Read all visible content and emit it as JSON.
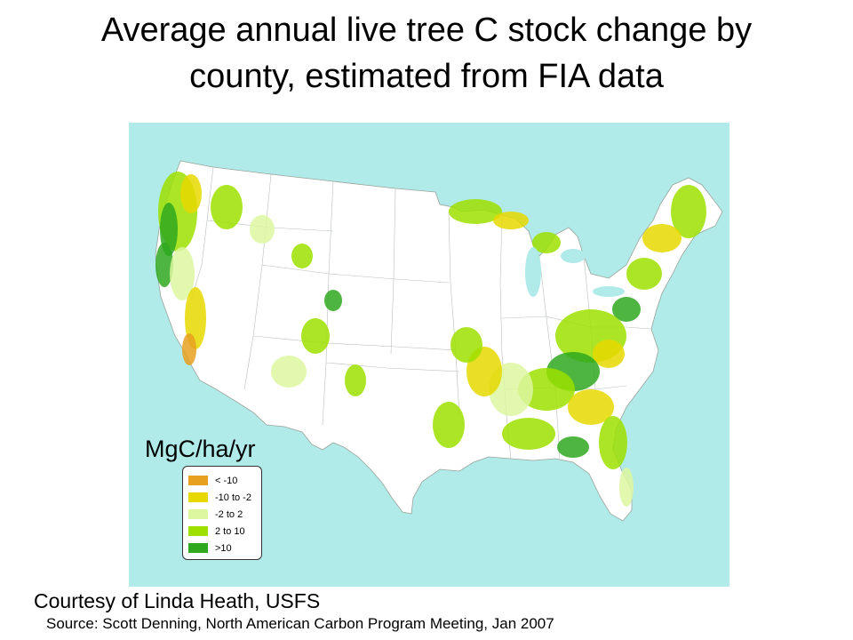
{
  "title": {
    "line1": "Average annual live tree C stock change by",
    "line2": "county, estimated from FIA data"
  },
  "legend": {
    "units": "MgC/ha/yr",
    "items": [
      {
        "label": "< -10",
        "color": "#e8a020"
      },
      {
        "label": "-10 to -2",
        "color": "#e6d800"
      },
      {
        "label": "-2 to 2",
        "color": "#ddf7a0"
      },
      {
        "label": "2 to 10",
        "color": "#9ee000"
      },
      {
        "label": ">10",
        "color": "#2ea81e"
      }
    ]
  },
  "map": {
    "ocean_color": "#b0ebea",
    "land_color": "#ffffff",
    "border_color": "#9aa39a"
  },
  "credit": "Courtesy of Linda Heath, USFS",
  "source": "Source:  Scott Denning, North American Carbon Program Meeting, Jan 2007"
}
